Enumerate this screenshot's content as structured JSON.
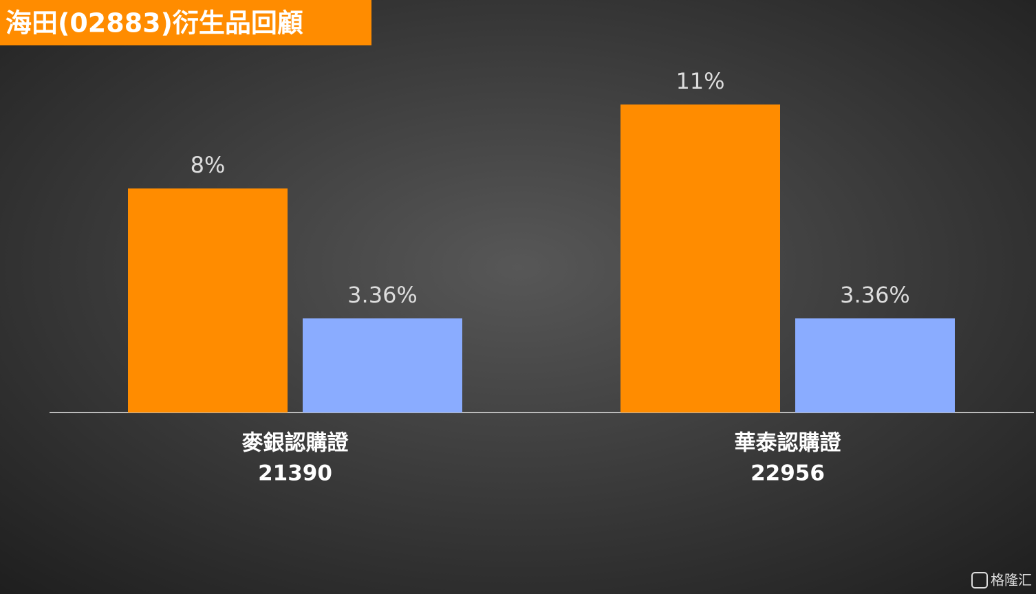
{
  "chart_data": {
    "type": "bar",
    "title": "海田(02883)衍生品回顧",
    "categories": [
      [
        "麥銀認購證",
        "21390"
      ],
      [
        "華泰認購證",
        "22956"
      ]
    ],
    "series": [
      {
        "color": "#ff8c00",
        "values": [
          8,
          11
        ],
        "value_labels": [
          "8%",
          "11%"
        ]
      },
      {
        "color": "#8aacff",
        "values": [
          3.36,
          3.36
        ],
        "value_labels": [
          "3.36%",
          "3.36%"
        ]
      }
    ]
  },
  "watermark": "格隆汇"
}
